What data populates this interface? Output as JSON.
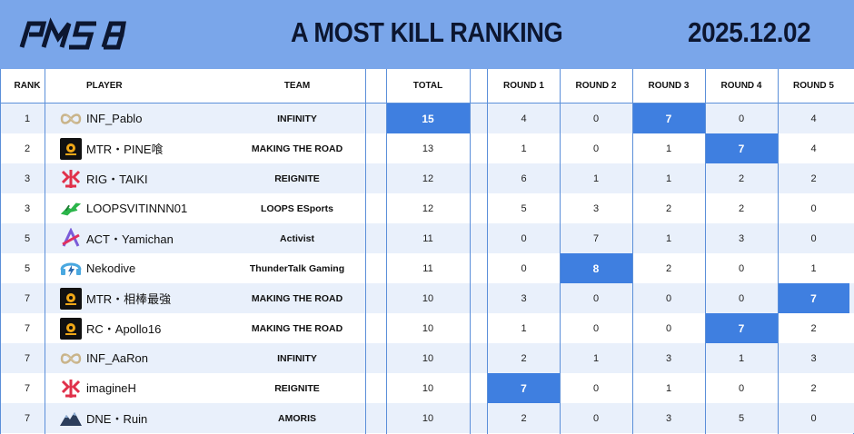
{
  "header": {
    "logo_text": "PMSB",
    "title": "A  MOST KILL RANKING",
    "date": "2025.12.02"
  },
  "columns": {
    "rank": "RANK",
    "player": "PLAYER",
    "team": "TEAM",
    "total": "TOTAL",
    "round1": "ROUND 1",
    "round2": "ROUND 2",
    "round3": "ROUND 3",
    "round4": "ROUND 4",
    "round5": "ROUND 5"
  },
  "colors": {
    "header_bg": "#7aa6ea",
    "highlight": "#3f7fe0",
    "row_alt": "#e9f0fb",
    "grid": "#5b8fd9"
  },
  "rows": [
    {
      "rank": "1",
      "player": "INF_Pablo",
      "team": "INFINITY",
      "team_icon": "infinity-logo-icon",
      "total": "15",
      "rounds": [
        "4",
        "0",
        "7",
        "0",
        "4"
      ],
      "hl": [
        "total",
        "r3"
      ]
    },
    {
      "rank": "2",
      "player": "MTR・PINE喰",
      "team": "MAKING THE ROAD",
      "team_icon": "making-the-road-logo-icon",
      "total": "13",
      "rounds": [
        "1",
        "0",
        "1",
        "7",
        "4"
      ],
      "hl": [
        "r4"
      ]
    },
    {
      "rank": "3",
      "player": "RIG・TAIKI",
      "team": "REIGNITE",
      "team_icon": "reignite-logo-icon",
      "total": "12",
      "rounds": [
        "6",
        "1",
        "1",
        "2",
        "2"
      ],
      "hl": []
    },
    {
      "rank": "3",
      "player": "LOOPSVITINNN01",
      "team": "LOOPS ESports",
      "team_icon": "loops-logo-icon",
      "total": "12",
      "rounds": [
        "5",
        "3",
        "2",
        "2",
        "0"
      ],
      "hl": []
    },
    {
      "rank": "5",
      "player": "ACT・Yamichan",
      "team": "Activist",
      "team_icon": "activist-logo-icon",
      "total": "11",
      "rounds": [
        "0",
        "7",
        "1",
        "3",
        "0"
      ],
      "hl": []
    },
    {
      "rank": "5",
      "player": "Nekodive",
      "team": "ThunderTalk Gaming",
      "team_icon": "thundertalk-logo-icon",
      "total": "11",
      "rounds": [
        "0",
        "8",
        "2",
        "0",
        "1"
      ],
      "hl": [
        "r2"
      ]
    },
    {
      "rank": "7",
      "player": "MTR・相棒最強",
      "team": "MAKING THE ROAD",
      "team_icon": "making-the-road-logo-icon",
      "total": "10",
      "rounds": [
        "3",
        "0",
        "0",
        "0",
        "7"
      ],
      "hl": [
        "r5"
      ]
    },
    {
      "rank": "7",
      "player": "RC・Apollo16",
      "team": "MAKING THE ROAD",
      "team_icon": "making-the-road-logo-icon",
      "total": "10",
      "rounds": [
        "1",
        "0",
        "0",
        "7",
        "2"
      ],
      "hl": [
        "r4"
      ]
    },
    {
      "rank": "7",
      "player": "INF_AaRon",
      "team": "INFINITY",
      "team_icon": "infinity-logo-icon",
      "total": "10",
      "rounds": [
        "2",
        "1",
        "3",
        "1",
        "3"
      ],
      "hl": []
    },
    {
      "rank": "7",
      "player": "imagineΗ",
      "team": "REIGNITE",
      "team_icon": "reignite-logo-icon",
      "total": "10",
      "rounds": [
        "7",
        "0",
        "1",
        "0",
        "2"
      ],
      "hl": [
        "r1"
      ]
    },
    {
      "rank": "7",
      "player": "DNE・Ruin",
      "team": "AMORIS",
      "team_icon": "amoris-logo-icon",
      "total": "10",
      "rounds": [
        "2",
        "0",
        "3",
        "5",
        "0"
      ],
      "hl": []
    }
  ]
}
